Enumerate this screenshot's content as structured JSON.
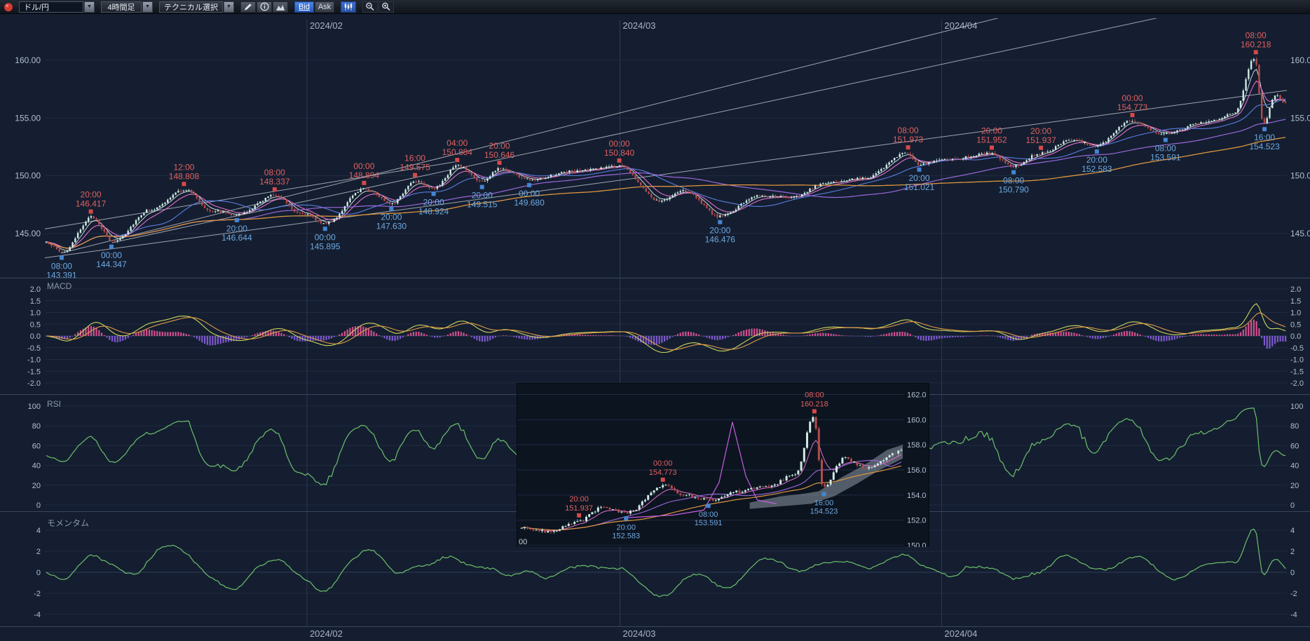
{
  "toolbar": {
    "pair_select": {
      "value": "ドル/円"
    },
    "timeframe_select": {
      "value": "4時間足"
    },
    "technical_select": {
      "label": "テクニカル選択"
    },
    "bid_button": "Bid",
    "ask_button": "Ask",
    "glyphs": {
      "dropdown": "▼"
    },
    "icons": [
      "app-icon",
      "pencil-icon",
      "info-icon",
      "area-chart-icon",
      "candlestick-chart-icon",
      "zoom-out-icon",
      "zoom-in-icon"
    ]
  },
  "panels": {
    "macd_label": "MACD",
    "rsi_label": "RSI",
    "momentum_label": "モメンタム"
  },
  "colors": {
    "background": "#131c2c",
    "accent_blue": "#2f6cd0",
    "candle_up": "#d2e9e4",
    "candle_down": "#b44c4c",
    "annotation_high": "#e06060",
    "annotation_low": "#6fa8e0",
    "marker_high": "#d64a4a",
    "marker_low": "#4585d2"
  },
  "chart_data": [
    {
      "id": "main",
      "type": "candlestick",
      "pair": "ドル/円",
      "timeframe": "4時間足",
      "x_ticks": [
        {
          "f": 0.211,
          "label": "2024/02"
        },
        {
          "f": 0.463,
          "label": "2024/03"
        },
        {
          "f": 0.722,
          "label": "2024/04"
        }
      ],
      "y_ticks": [
        {
          "v": 160,
          "label": "160.00"
        },
        {
          "v": 155,
          "label": "155.00"
        },
        {
          "v": 150,
          "label": "150.00"
        },
        {
          "v": 145,
          "label": "145.00"
        }
      ],
      "ylim": [
        141.5,
        163.5
      ],
      "grid": true,
      "swing_points": [
        {
          "f": 0.0,
          "p": 144.2
        },
        {
          "f": 0.0135,
          "p": 143.391,
          "t": "08:00",
          "k": "L"
        },
        {
          "f": 0.037,
          "p": 146.417,
          "t": "20:00",
          "k": "H"
        },
        {
          "f": 0.0536,
          "p": 144.347,
          "t": "00:00",
          "k": "L"
        },
        {
          "f": 0.085,
          "p": 147.1
        },
        {
          "f": 0.112,
          "p": 148.808,
          "t": "12:00",
          "k": "H"
        },
        {
          "f": 0.133,
          "p": 147.0
        },
        {
          "f": 0.1546,
          "p": 146.644,
          "t": "20:00",
          "k": "L"
        },
        {
          "f": 0.185,
          "p": 148.337,
          "t": "08:00",
          "k": "H"
        },
        {
          "f": 0.205,
          "p": 146.8
        },
        {
          "f": 0.2256,
          "p": 145.895,
          "t": "00:00",
          "k": "L"
        },
        {
          "f": 0.257,
          "p": 148.894,
          "t": "00:00",
          "k": "H"
        },
        {
          "f": 0.279,
          "p": 147.63,
          "t": "20:00",
          "k": "L"
        },
        {
          "f": 0.298,
          "p": 149.575,
          "t": "16:00",
          "k": "H"
        },
        {
          "f": 0.313,
          "p": 148.924,
          "t": "20:00",
          "k": "L"
        },
        {
          "f": 0.332,
          "p": 150.884,
          "t": "04:00",
          "k": "H"
        },
        {
          "f": 0.352,
          "p": 149.515,
          "t": "20:00",
          "k": "L"
        },
        {
          "f": 0.366,
          "p": 150.646,
          "t": "20:00",
          "k": "H"
        },
        {
          "f": 0.39,
          "p": 149.68,
          "t": "00:00",
          "k": "L"
        },
        {
          "f": 0.425,
          "p": 150.4
        },
        {
          "f": 0.4625,
          "p": 150.84,
          "t": "00:00",
          "k": "H"
        },
        {
          "f": 0.495,
          "p": 147.8
        },
        {
          "f": 0.515,
          "p": 148.7
        },
        {
          "f": 0.5436,
          "p": 146.476,
          "t": "20:00",
          "k": "L"
        },
        {
          "f": 0.575,
          "p": 148.3
        },
        {
          "f": 0.6,
          "p": 148.1
        },
        {
          "f": 0.63,
          "p": 149.4
        },
        {
          "f": 0.66,
          "p": 149.8
        },
        {
          "f": 0.695,
          "p": 151.973,
          "t": "08:00",
          "k": "H"
        },
        {
          "f": 0.704,
          "p": 151.021,
          "t": "20:00",
          "k": "L"
        },
        {
          "f": 0.73,
          "p": 151.45
        },
        {
          "f": 0.7624,
          "p": 151.952,
          "t": "20:00",
          "k": "H"
        },
        {
          "f": 0.78,
          "p": 150.79,
          "t": "08:00",
          "k": "L"
        },
        {
          "f": 0.802,
          "p": 151.937,
          "t": "20:00",
          "k": "H"
        },
        {
          "f": 0.828,
          "p": 153.1
        },
        {
          "f": 0.847,
          "p": 152.583,
          "t": "20:00",
          "k": "L"
        },
        {
          "f": 0.8756,
          "p": 154.773,
          "t": "00:00",
          "k": "H"
        },
        {
          "f": 0.9023,
          "p": 153.591,
          "t": "08:00",
          "k": "L"
        },
        {
          "f": 0.935,
          "p": 154.7
        },
        {
          "f": 0.958,
          "p": 155.3
        },
        {
          "f": 0.975,
          "p": 160.218,
          "t": "08:00",
          "k": "H"
        },
        {
          "f": 0.982,
          "p": 154.523,
          "t": "16:00",
          "k": "L"
        },
        {
          "f": 0.992,
          "p": 157.0
        },
        {
          "f": 1.0,
          "p": 156.3
        }
      ],
      "trend_lines": [
        {
          "f1": 0.0,
          "p1": 142.9,
          "f2": 1.0,
          "p2": 157.4
        },
        {
          "f1": 0.013,
          "p1": 143.3,
          "f2": 0.78,
          "p2": 164.0
        },
        {
          "f1": 0.054,
          "p1": 144.2,
          "f2": 0.91,
          "p2": 164.0
        },
        {
          "f1": 0.0,
          "p1": 145.4,
          "f2": 0.33,
          "p2": 151.2
        }
      ],
      "moving_averages": [
        {
          "type": "ema",
          "window": 5,
          "color": "#dfe6ec",
          "width": 0.9
        },
        {
          "type": "ema",
          "window": 10,
          "color": "#e070cc",
          "width": 1.1
        },
        {
          "type": "sma",
          "window": 25,
          "color": "#5a7de0",
          "width": 1.1
        },
        {
          "type": "sma",
          "window": 75,
          "color": "#9a68da",
          "width": 1.2
        },
        {
          "type": "sma",
          "window": 150,
          "color": "#dd9440",
          "width": 1.3
        }
      ]
    },
    {
      "id": "macd",
      "type": "line",
      "label": "MACD",
      "source": "main",
      "y_ticks": [
        {
          "v": 2,
          "label": "2.0"
        },
        {
          "v": 1.5,
          "label": "1.5"
        },
        {
          "v": 1,
          "label": "1.0"
        },
        {
          "v": 0.5,
          "label": "0.5"
        },
        {
          "v": 0,
          "label": "0.0"
        },
        {
          "v": -0.5,
          "label": "-0.5"
        },
        {
          "v": -1,
          "label": "-1.0"
        },
        {
          "v": -1.5,
          "label": "-1.5"
        },
        {
          "v": -2,
          "label": "-2.0"
        }
      ],
      "ylim": [
        -2.25,
        2.25
      ],
      "colors": {
        "macd_line": "#ccd45c",
        "signal_line": "#e09a48",
        "hist_pos": "#d4508e",
        "hist_neg": "#7e58d0"
      }
    },
    {
      "id": "rsi",
      "type": "line",
      "label": "RSI",
      "source": "main",
      "y_ticks": [
        {
          "v": 100,
          "label": "100"
        },
        {
          "v": 80,
          "label": "80"
        },
        {
          "v": 60,
          "label": "60"
        },
        {
          "v": 40,
          "label": "40"
        },
        {
          "v": 20,
          "label": "20"
        },
        {
          "v": 0,
          "label": "0"
        }
      ],
      "ylim": [
        -6,
        112
      ],
      "color": "#6cbf6c"
    },
    {
      "id": "momentum",
      "type": "line",
      "label": "モメンタム",
      "source": "main",
      "y_ticks": [
        {
          "v": 4,
          "label": "4"
        },
        {
          "v": 2,
          "label": "2"
        },
        {
          "v": 0,
          "label": "0"
        },
        {
          "v": -2,
          "label": "-2"
        },
        {
          "v": -4,
          "label": "-4"
        }
      ],
      "ylim": [
        -4.95,
        5.7
      ],
      "color": "#6cbf6c"
    },
    {
      "id": "inset",
      "type": "candlestick",
      "description": "zoom popup of recent price action",
      "y_ticks": [
        {
          "v": 162,
          "label": "162.0"
        },
        {
          "v": 160,
          "label": "160.0"
        },
        {
          "v": 158,
          "label": "158.0"
        },
        {
          "v": 156,
          "label": "156.0"
        },
        {
          "v": 154,
          "label": "154.0"
        },
        {
          "v": 152,
          "label": "152.0"
        },
        {
          "v": 150,
          "label": "150.0"
        }
      ],
      "x_label": "00",
      "swing_points": [
        {
          "f": 0.0,
          "p": 151.4
        },
        {
          "f": 0.07,
          "p": 151.1
        },
        {
          "f": 0.154,
          "p": 151.937,
          "t": "20:00",
          "k": "H"
        },
        {
          "f": 0.21,
          "p": 153.0
        },
        {
          "f": 0.277,
          "p": 152.583,
          "t": "20:00",
          "k": "L"
        },
        {
          "f": 0.373,
          "p": 154.773,
          "t": "00:00",
          "k": "H"
        },
        {
          "f": 0.43,
          "p": 154.0
        },
        {
          "f": 0.492,
          "p": 153.591,
          "t": "08:00",
          "k": "L"
        },
        {
          "f": 0.57,
          "p": 154.3
        },
        {
          "f": 0.65,
          "p": 154.7
        },
        {
          "f": 0.72,
          "p": 155.6
        },
        {
          "f": 0.769,
          "p": 160.218,
          "t": "08:00",
          "k": "H"
        },
        {
          "f": 0.794,
          "p": 154.523,
          "t": "16:00",
          "k": "L"
        },
        {
          "f": 0.85,
          "p": 156.9
        },
        {
          "f": 0.91,
          "p": 156.1
        },
        {
          "f": 1.0,
          "p": 157.5
        }
      ],
      "overlay_line": [
        [
          0.28,
          152.2
        ],
        [
          0.4,
          152.4
        ],
        [
          0.48,
          152.8
        ],
        [
          0.52,
          155.0
        ],
        [
          0.555,
          159.8
        ],
        [
          0.59,
          155.5
        ],
        [
          0.62,
          153.6
        ],
        [
          0.67,
          153.3
        ]
      ],
      "cloud": {
        "top": [
          [
            0.6,
            153.4
          ],
          [
            0.68,
            153.9
          ],
          [
            0.74,
            154.1
          ],
          [
            0.78,
            154.3
          ],
          [
            0.84,
            155.4
          ],
          [
            0.9,
            156.4
          ],
          [
            0.96,
            157.6
          ],
          [
            1.0,
            158.0
          ]
        ],
        "bottom": [
          [
            1.0,
            156.9
          ],
          [
            0.94,
            156.0
          ],
          [
            0.88,
            154.9
          ],
          [
            0.82,
            153.9
          ],
          [
            0.76,
            153.3
          ],
          [
            0.68,
            153.1
          ],
          [
            0.6,
            152.9
          ]
        ]
      }
    }
  ]
}
